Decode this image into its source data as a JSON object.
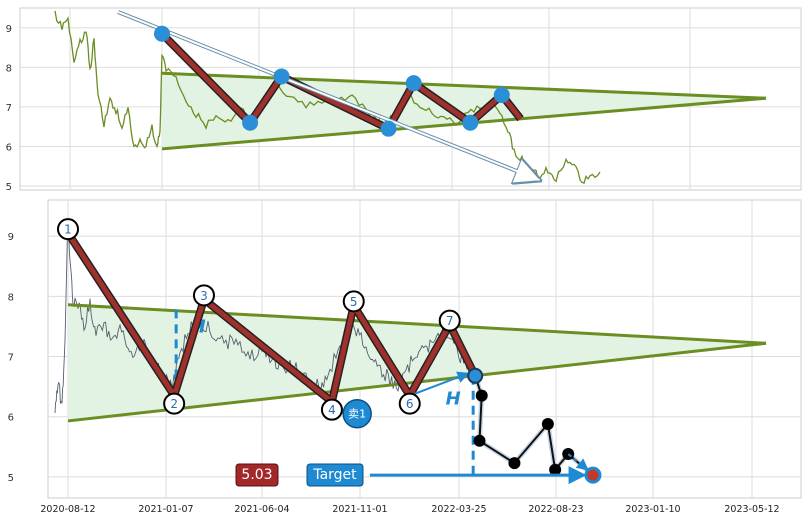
{
  "chart_data": [
    {
      "type": "line",
      "panel": "overview",
      "ylim": [
        4.9,
        9.5
      ],
      "y_ticks": [
        "9",
        "8",
        "7",
        "6",
        "5"
      ],
      "grid": true,
      "price_color": "#6b8e23",
      "triangle": {
        "upper": [
          [
            0.0,
            7.85
          ],
          [
            0.96,
            7.22
          ]
        ],
        "lower": [
          [
            0.0,
            5.94
          ],
          [
            0.96,
            7.22
          ]
        ],
        "apex": [
          0.96,
          7.22
        ]
      },
      "trend_arrow": [
        [
          -0.07,
          9.4
        ],
        [
          0.6,
          5.15
        ]
      ],
      "pattern_points": [
        {
          "x": 0.0,
          "y": 8.85
        },
        {
          "x": 0.14,
          "y": 6.6
        },
        {
          "x": 0.19,
          "y": 7.77
        },
        {
          "x": 0.36,
          "y": 6.45
        },
        {
          "x": 0.4,
          "y": 7.6
        },
        {
          "x": 0.49,
          "y": 6.6
        },
        {
          "x": 0.54,
          "y": 7.3
        },
        {
          "x": 0.57,
          "y": 6.7
        }
      ]
    },
    {
      "type": "line",
      "panel": "detail",
      "ylim": [
        4.65,
        9.6
      ],
      "y_ticks": [
        "9",
        "8",
        "7",
        "6",
        "5"
      ],
      "x_ticks": [
        "2020-08-12",
        "2021-01-07",
        "2021-06-04",
        "2021-11-01",
        "2022-03-25",
        "2022-08-23",
        "2023-01-10",
        "2023-05-12"
      ],
      "grid": true,
      "price_color": "#555e70",
      "triangle": {
        "upper": [
          [
            0.0,
            7.86
          ],
          [
            0.96,
            7.22
          ]
        ],
        "lower": [
          [
            0.0,
            5.93
          ],
          [
            0.96,
            7.22
          ]
        ],
        "apex": [
          0.96,
          7.22
        ]
      },
      "pattern_points": [
        {
          "label": "1",
          "x": 0.0,
          "y": 9.05
        },
        {
          "label": "2",
          "x": 0.146,
          "y": 6.35
        },
        {
          "label": "3",
          "x": 0.187,
          "y": 7.95
        },
        {
          "label": "4",
          "x": 0.363,
          "y": 6.25
        },
        {
          "label": "5",
          "x": 0.393,
          "y": 7.85
        },
        {
          "label": "6",
          "x": 0.47,
          "y": 6.35
        },
        {
          "label": "7",
          "x": 0.525,
          "y": 7.53
        }
      ],
      "breakout": {
        "label": "卖1",
        "x": 0.56,
        "y": 6.68
      },
      "height_marker": "H",
      "post_breakout_points": [
        {
          "x": 0.569,
          "y": 6.35
        },
        {
          "x": 0.566,
          "y": 5.6
        },
        {
          "x": 0.614,
          "y": 5.23
        },
        {
          "x": 0.66,
          "y": 5.88
        },
        {
          "x": 0.67,
          "y": 5.12
        },
        {
          "x": 0.688,
          "y": 5.38
        }
      ],
      "target": {
        "label": "Target",
        "value": "5.03",
        "y": 5.03
      }
    }
  ]
}
